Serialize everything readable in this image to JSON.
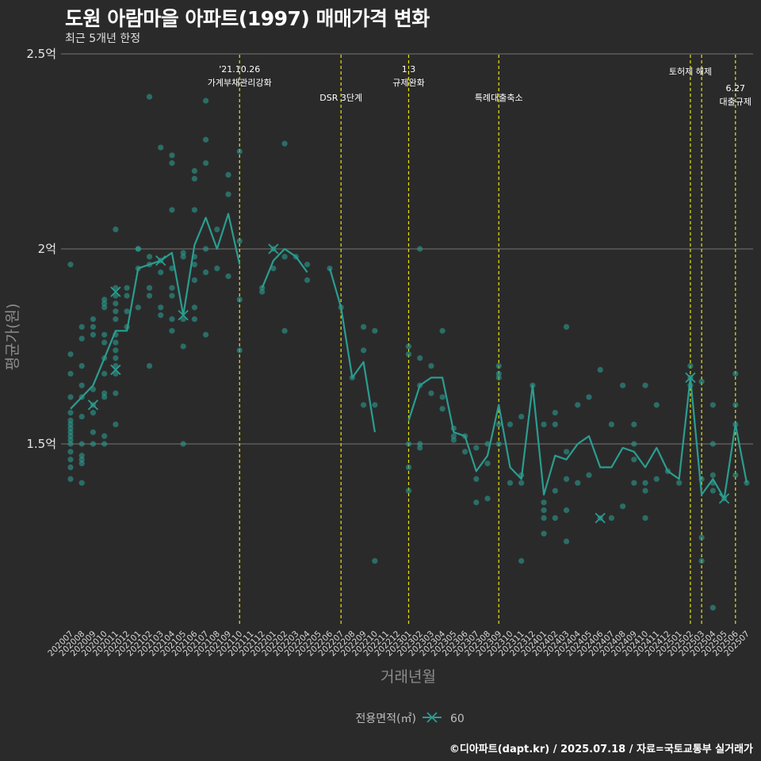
{
  "title": "도원 아람마을 아파트(1997) 매매가격 변화",
  "subtitle": "최근 5개년 한정",
  "caption": "©디아파트(dapt.kr) / 2025.07.18 / 자료=국토교통부 실거래가",
  "colors": {
    "background": "#2b2a2b",
    "series": "#2a9d8f",
    "event_line": "#e5e500",
    "grid": "#666666"
  },
  "chart_data": {
    "type": "scatter",
    "xlabel": "거래년월",
    "ylabel": "평균가(원)",
    "ylim": [
      1.1,
      2.5
    ],
    "y_ticks": [
      {
        "value": 1.5,
        "label": "1.5억"
      },
      {
        "value": 2.0,
        "label": "2억"
      },
      {
        "value": 2.5,
        "label": "2.5억"
      }
    ],
    "grid": true,
    "legend": {
      "title": "전용면적(㎡)",
      "position": "bottom",
      "entries": [
        "60"
      ]
    },
    "categories": [
      "202007",
      "202008",
      "202009",
      "202010",
      "202011",
      "202012",
      "202101",
      "202102",
      "202103",
      "202104",
      "202105",
      "202106",
      "202107",
      "202108",
      "202109",
      "202110",
      "202111",
      "202112",
      "202201",
      "202202",
      "202203",
      "202204",
      "202205",
      "202206",
      "202207",
      "202208",
      "202209",
      "202210",
      "202211",
      "202212",
      "202301",
      "202302",
      "202303",
      "202304",
      "202305",
      "202306",
      "202307",
      "202308",
      "202309",
      "202310",
      "202311",
      "202312",
      "202401",
      "202402",
      "202403",
      "202404",
      "202405",
      "202406",
      "202407",
      "202408",
      "202409",
      "202410",
      "202411",
      "202412",
      "202501",
      "202502",
      "202503",
      "202504",
      "202505",
      "202506",
      "202507"
    ],
    "series": [
      {
        "name": "60",
        "values": [
          1.59,
          1.62,
          1.65,
          1.72,
          1.79,
          1.79,
          1.95,
          1.96,
          1.97,
          1.99,
          1.83,
          2.01,
          2.08,
          2.0,
          2.09,
          1.96,
          null,
          1.9,
          1.97,
          2.0,
          1.98,
          1.94,
          null,
          1.95,
          1.85,
          1.67,
          1.71,
          1.53,
          null,
          null,
          1.56,
          1.65,
          1.67,
          1.67,
          1.53,
          1.52,
          1.43,
          1.47,
          1.6,
          1.44,
          1.41,
          1.65,
          1.37,
          1.47,
          1.46,
          1.5,
          1.52,
          1.44,
          1.44,
          1.49,
          1.48,
          1.44,
          1.49,
          1.43,
          1.41,
          1.67,
          1.37,
          1.41,
          1.36,
          1.55,
          1.4
        ]
      }
    ],
    "points": [
      [
        "202007",
        1.96
      ],
      [
        "202007",
        1.73
      ],
      [
        "202007",
        1.68
      ],
      [
        "202007",
        1.62
      ],
      [
        "202007",
        1.58
      ],
      [
        "202007",
        1.56
      ],
      [
        "202007",
        1.55
      ],
      [
        "202007",
        1.54
      ],
      [
        "202007",
        1.53
      ],
      [
        "202007",
        1.52
      ],
      [
        "202007",
        1.51
      ],
      [
        "202007",
        1.5
      ],
      [
        "202007",
        1.48
      ],
      [
        "202007",
        1.46
      ],
      [
        "202007",
        1.44
      ],
      [
        "202007",
        1.41
      ],
      [
        "202008",
        1.8
      ],
      [
        "202008",
        1.77
      ],
      [
        "202008",
        1.7
      ],
      [
        "202008",
        1.65
      ],
      [
        "202008",
        1.62
      ],
      [
        "202008",
        1.57
      ],
      [
        "202008",
        1.5
      ],
      [
        "202008",
        1.47
      ],
      [
        "202008",
        1.46
      ],
      [
        "202008",
        1.45
      ],
      [
        "202008",
        1.4
      ],
      [
        "202009",
        1.82
      ],
      [
        "202009",
        1.8
      ],
      [
        "202009",
        1.78
      ],
      [
        "202009",
        1.64
      ],
      [
        "202009",
        1.6
      ],
      [
        "202009",
        1.58
      ],
      [
        "202009",
        1.53
      ],
      [
        "202009",
        1.5
      ],
      [
        "202010",
        1.87
      ],
      [
        "202010",
        1.86
      ],
      [
        "202010",
        1.85
      ],
      [
        "202010",
        1.78
      ],
      [
        "202010",
        1.76
      ],
      [
        "202010",
        1.72
      ],
      [
        "202010",
        1.68
      ],
      [
        "202010",
        1.63
      ],
      [
        "202010",
        1.62
      ],
      [
        "202010",
        1.52
      ],
      [
        "202010",
        1.5
      ],
      [
        "202011",
        2.05
      ],
      [
        "202011",
        1.9
      ],
      [
        "202011",
        1.88
      ],
      [
        "202011",
        1.86
      ],
      [
        "202011",
        1.84
      ],
      [
        "202011",
        1.82
      ],
      [
        "202011",
        1.78
      ],
      [
        "202011",
        1.76
      ],
      [
        "202011",
        1.74
      ],
      [
        "202011",
        1.72
      ],
      [
        "202011",
        1.7
      ],
      [
        "202011",
        1.68
      ],
      [
        "202011",
        1.63
      ],
      [
        "202011",
        1.55
      ],
      [
        "202012",
        1.9
      ],
      [
        "202012",
        1.88
      ],
      [
        "202012",
        1.84
      ],
      [
        "202012",
        1.8
      ],
      [
        "202101",
        2.0
      ],
      [
        "202101",
        2.0
      ],
      [
        "202101",
        1.95
      ],
      [
        "202101",
        1.85
      ],
      [
        "202102",
        2.39
      ],
      [
        "202102",
        1.98
      ],
      [
        "202102",
        1.96
      ],
      [
        "202102",
        1.9
      ],
      [
        "202102",
        1.88
      ],
      [
        "202102",
        1.7
      ],
      [
        "202103",
        2.26
      ],
      [
        "202103",
        1.97
      ],
      [
        "202103",
        1.94
      ],
      [
        "202103",
        1.85
      ],
      [
        "202103",
        1.83
      ],
      [
        "202104",
        2.24
      ],
      [
        "202104",
        2.22
      ],
      [
        "202104",
        2.1
      ],
      [
        "202104",
        1.95
      ],
      [
        "202104",
        1.9
      ],
      [
        "202104",
        1.88
      ],
      [
        "202104",
        1.82
      ],
      [
        "202104",
        1.79
      ],
      [
        "202105",
        1.99
      ],
      [
        "202105",
        1.98
      ],
      [
        "202105",
        1.82
      ],
      [
        "202105",
        1.75
      ],
      [
        "202105",
        1.5
      ],
      [
        "202106",
        2.2
      ],
      [
        "202106",
        2.18
      ],
      [
        "202106",
        2.1
      ],
      [
        "202106",
        1.98
      ],
      [
        "202106",
        1.96
      ],
      [
        "202106",
        1.92
      ],
      [
        "202106",
        1.85
      ],
      [
        "202106",
        1.82
      ],
      [
        "202107",
        2.38
      ],
      [
        "202107",
        2.28
      ],
      [
        "202107",
        2.22
      ],
      [
        "202107",
        2.0
      ],
      [
        "202107",
        1.94
      ],
      [
        "202107",
        1.78
      ],
      [
        "202108",
        2.05
      ],
      [
        "202108",
        1.95
      ],
      [
        "202109",
        2.19
      ],
      [
        "202109",
        2.14
      ],
      [
        "202109",
        1.93
      ],
      [
        "202110",
        2.25
      ],
      [
        "202110",
        2.02
      ],
      [
        "202110",
        1.87
      ],
      [
        "202110",
        1.74
      ],
      [
        "202112",
        1.9
      ],
      [
        "202112",
        1.89
      ],
      [
        "202201",
        2.0
      ],
      [
        "202201",
        1.95
      ],
      [
        "202202",
        2.27
      ],
      [
        "202202",
        1.98
      ],
      [
        "202202",
        1.79
      ],
      [
        "202203",
        1.98
      ],
      [
        "202204",
        1.96
      ],
      [
        "202204",
        1.92
      ],
      [
        "202206",
        1.95
      ],
      [
        "202207",
        1.85
      ],
      [
        "202208",
        1.67
      ],
      [
        "202209",
        1.8
      ],
      [
        "202209",
        1.74
      ],
      [
        "202209",
        1.6
      ],
      [
        "202210",
        1.79
      ],
      [
        "202210",
        1.6
      ],
      [
        "202210",
        1.2
      ],
      [
        "202301",
        1.75
      ],
      [
        "202301",
        1.73
      ],
      [
        "202301",
        1.5
      ],
      [
        "202301",
        1.44
      ],
      [
        "202301",
        1.38
      ],
      [
        "202302",
        2.0
      ],
      [
        "202302",
        1.72
      ],
      [
        "202302",
        1.65
      ],
      [
        "202302",
        1.5
      ],
      [
        "202302",
        1.49
      ],
      [
        "202303",
        1.7
      ],
      [
        "202303",
        1.63
      ],
      [
        "202304",
        1.79
      ],
      [
        "202304",
        1.62
      ],
      [
        "202304",
        1.59
      ],
      [
        "202305",
        1.54
      ],
      [
        "202305",
        1.52
      ],
      [
        "202305",
        1.51
      ],
      [
        "202306",
        1.52
      ],
      [
        "202306",
        1.48
      ],
      [
        "202307",
        1.49
      ],
      [
        "202307",
        1.41
      ],
      [
        "202307",
        1.35
      ],
      [
        "202308",
        1.5
      ],
      [
        "202308",
        1.45
      ],
      [
        "202308",
        1.36
      ],
      [
        "202309",
        1.7
      ],
      [
        "202309",
        1.68
      ],
      [
        "202309",
        1.67
      ],
      [
        "202309",
        1.55
      ],
      [
        "202309",
        1.5
      ],
      [
        "202310",
        1.55
      ],
      [
        "202310",
        1.4
      ],
      [
        "202311",
        1.57
      ],
      [
        "202311",
        1.42
      ],
      [
        "202311",
        1.4
      ],
      [
        "202311",
        1.2
      ],
      [
        "202312",
        1.65
      ],
      [
        "202401",
        1.55
      ],
      [
        "202401",
        1.35
      ],
      [
        "202401",
        1.33
      ],
      [
        "202401",
        1.31
      ],
      [
        "202401",
        1.27
      ],
      [
        "202402",
        1.58
      ],
      [
        "202402",
        1.55
      ],
      [
        "202402",
        1.38
      ],
      [
        "202402",
        1.31
      ],
      [
        "202403",
        1.8
      ],
      [
        "202403",
        1.48
      ],
      [
        "202403",
        1.41
      ],
      [
        "202403",
        1.33
      ],
      [
        "202403",
        1.25
      ],
      [
        "202404",
        1.6
      ],
      [
        "202404",
        1.4
      ],
      [
        "202405",
        1.62
      ],
      [
        "202405",
        1.42
      ],
      [
        "202406",
        1.69
      ],
      [
        "202406",
        1.31
      ],
      [
        "202407",
        1.55
      ],
      [
        "202407",
        1.31
      ],
      [
        "202408",
        1.65
      ],
      [
        "202408",
        1.34
      ],
      [
        "202409",
        1.55
      ],
      [
        "202409",
        1.5
      ],
      [
        "202409",
        1.46
      ],
      [
        "202409",
        1.4
      ],
      [
        "202410",
        1.65
      ],
      [
        "202410",
        1.4
      ],
      [
        "202410",
        1.38
      ],
      [
        "202410",
        1.31
      ],
      [
        "202411",
        1.6
      ],
      [
        "202411",
        1.41
      ],
      [
        "202412",
        1.43
      ],
      [
        "202501",
        1.4
      ],
      [
        "202502",
        1.7
      ],
      [
        "202502",
        1.67
      ],
      [
        "202502",
        1.65
      ],
      [
        "202503",
        1.66
      ],
      [
        "202503",
        1.41
      ],
      [
        "202503",
        1.26
      ],
      [
        "202503",
        1.2
      ],
      [
        "202504",
        1.6
      ],
      [
        "202504",
        1.5
      ],
      [
        "202504",
        1.42
      ],
      [
        "202504",
        1.4
      ],
      [
        "202504",
        1.38
      ],
      [
        "202504",
        1.08
      ],
      [
        "202505",
        1.36
      ],
      [
        "202506",
        1.68
      ],
      [
        "202506",
        1.6
      ],
      [
        "202506",
        1.55
      ],
      [
        "202506",
        1.42
      ],
      [
        "202507",
        1.4
      ]
    ],
    "x_markers": [
      [
        "202011",
        1.89
      ],
      [
        "202011",
        1.69
      ],
      [
        "202009",
        1.6
      ],
      [
        "202103",
        1.97
      ],
      [
        "202105",
        1.83
      ],
      [
        "202201",
        2.0
      ],
      [
        "202406",
        1.31
      ],
      [
        "202502",
        1.67
      ],
      [
        "202505",
        1.36
      ]
    ],
    "events": [
      {
        "at": "202110",
        "lines": [
          "'21.10.26",
          "가계부채관리강화"
        ],
        "level": 1
      },
      {
        "at": "202207",
        "lines": [
          "DSR 3단계"
        ],
        "level": 2
      },
      {
        "at": "202301",
        "lines": [
          "1.3",
          "규제완화"
        ],
        "level": 1
      },
      {
        "at": "202309",
        "lines": [
          "특례대출축소"
        ],
        "level": 2
      },
      {
        "at": "202502",
        "lines": [
          "토허제 해제"
        ],
        "level": 1
      },
      {
        "at": "202503",
        "lines": [],
        "level": 1
      },
      {
        "at": "202506",
        "lines": [
          "6.27",
          "대출규제"
        ],
        "level": 3
      }
    ]
  }
}
